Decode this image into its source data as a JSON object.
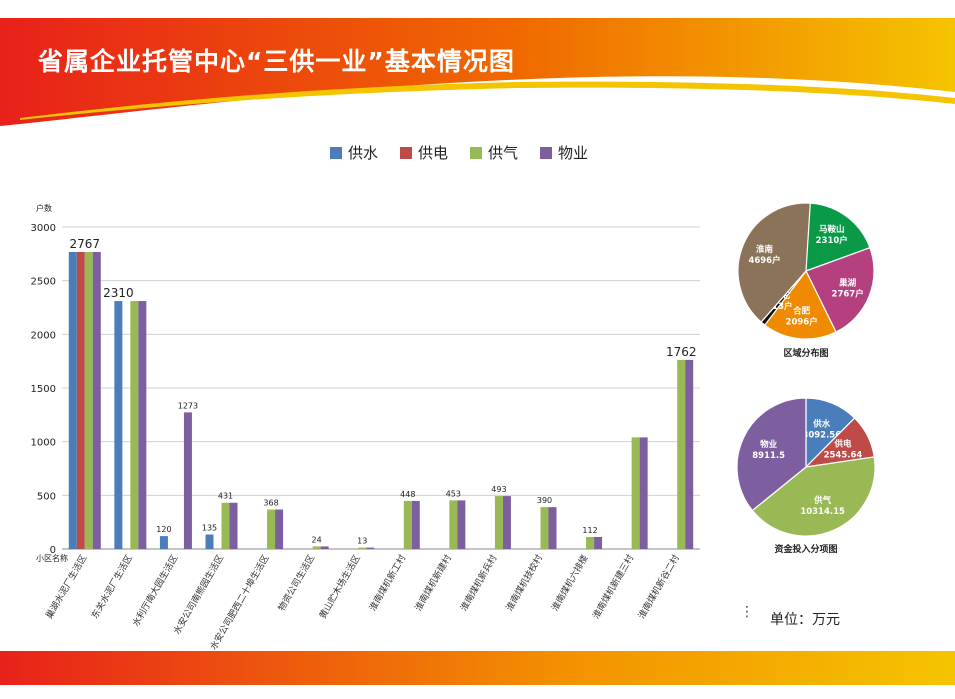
{
  "page": {
    "title": "省属企业托管中心“三供一业”基本情况图",
    "unit_label": "单位：万元",
    "unit_dots": "⋮",
    "accent_red": "#e8211a",
    "accent_orange": "#f39200",
    "accent_yellow": "#f5c400"
  },
  "chart_data": [
    {
      "type": "bar",
      "ylabel": "户数",
      "xlabel": "小区名称",
      "ylim": [
        0,
        3000
      ],
      "yticks": [
        0,
        500,
        1000,
        1500,
        2000,
        2500,
        3000
      ],
      "grid": true,
      "legend_position": "top",
      "categories": [
        "巢湖水泥厂生活区",
        "东关水泥厂生活区",
        "水利厅南大园生活区",
        "水安公司南熊园生活区",
        "水安公司肥西二十埠生活区",
        "物资公司生活区",
        "黄山贮木场生活区",
        "淮南煤机新工村",
        "淮南煤机新建村",
        "淮南煤机新兵村",
        "淮南煤机技校村",
        "淮南煤机六排楼",
        "淮南煤机新建三村",
        "淮南煤机新谷二村"
      ],
      "series": [
        {
          "name": "供水",
          "color": "#4a7ebb",
          "values": [
            2767,
            2310,
            120,
            135,
            null,
            null,
            null,
            null,
            null,
            null,
            null,
            null,
            null,
            null
          ]
        },
        {
          "name": "供电",
          "color": "#be4b48",
          "values": [
            2767,
            null,
            null,
            null,
            null,
            null,
            null,
            null,
            null,
            null,
            null,
            null,
            null,
            null
          ]
        },
        {
          "name": "供气",
          "color": "#98b954",
          "values": [
            2767,
            2310,
            null,
            431,
            368,
            24,
            13,
            448,
            453,
            493,
            390,
            112,
            1040,
            1762
          ]
        },
        {
          "name": "物业",
          "color": "#7d5fa0",
          "values": [
            2767,
            2310,
            1273,
            431,
            368,
            24,
            13,
            448,
            453,
            493,
            390,
            112,
            1040,
            1762
          ]
        }
      ],
      "data_labels": [
        {
          "category": "巢湖水泥厂生活区",
          "text": "2767"
        },
        {
          "category": "东关水泥厂生活区",
          "text": "2310"
        },
        {
          "category": "水利厅南大园生活区",
          "text": "120"
        },
        {
          "category": "水利厅南大园生活区",
          "text": "1273"
        },
        {
          "category": "水安公司南熊园生活区",
          "text": "135"
        },
        {
          "category": "水安公司南熊园生活区",
          "text": "431"
        },
        {
          "category": "水安公司肥西二十埠生活区",
          "text": "368"
        },
        {
          "category": "物资公司生活区",
          "text": "24"
        },
        {
          "category": "黄山贮木场生活区",
          "text": "13"
        },
        {
          "category": "淮南煤机新工村",
          "text": "448"
        },
        {
          "category": "淮南煤机新建村",
          "text": "453"
        },
        {
          "category": "淮南煤机新兵村",
          "text": "493"
        },
        {
          "category": "淮南煤机技校村",
          "text": "390"
        },
        {
          "category": "淮南煤机六排楼",
          "text": "112"
        },
        {
          "category": "淮南煤机新谷二村",
          "text": "1762"
        }
      ]
    },
    {
      "type": "pie",
      "title": "区域分布图",
      "slices": [
        {
          "label": "马鞍山",
          "value_label": "2310户",
          "value": 2310,
          "color": "#0a9a47"
        },
        {
          "label": "巢湖",
          "value_label": "2767户",
          "value": 2767,
          "color": "#b5407f"
        },
        {
          "label": "合肥",
          "value_label": "2096户",
          "value": 2096,
          "color": "#f08a00"
        },
        {
          "label": "其它",
          "value_label": "13户",
          "value": 13,
          "color": "#0f0f0f"
        },
        {
          "label": "淮南",
          "value_label": "4696户",
          "value": 4696,
          "color": "#8a7359"
        }
      ]
    },
    {
      "type": "pie",
      "title": "资金投入分项图",
      "slices": [
        {
          "label": "供水",
          "value_label": "3092.56",
          "value": 3092.56,
          "color": "#4a7ebb"
        },
        {
          "label": "供电",
          "value_label": "2545.64",
          "value": 2545.64,
          "color": "#be4b48"
        },
        {
          "label": "供气",
          "value_label": "10314.15",
          "value": 10314.15,
          "color": "#98b954"
        },
        {
          "label": "物业",
          "value_label": "8911.5",
          "value": 8911.5,
          "color": "#7d5fa0"
        }
      ]
    }
  ]
}
